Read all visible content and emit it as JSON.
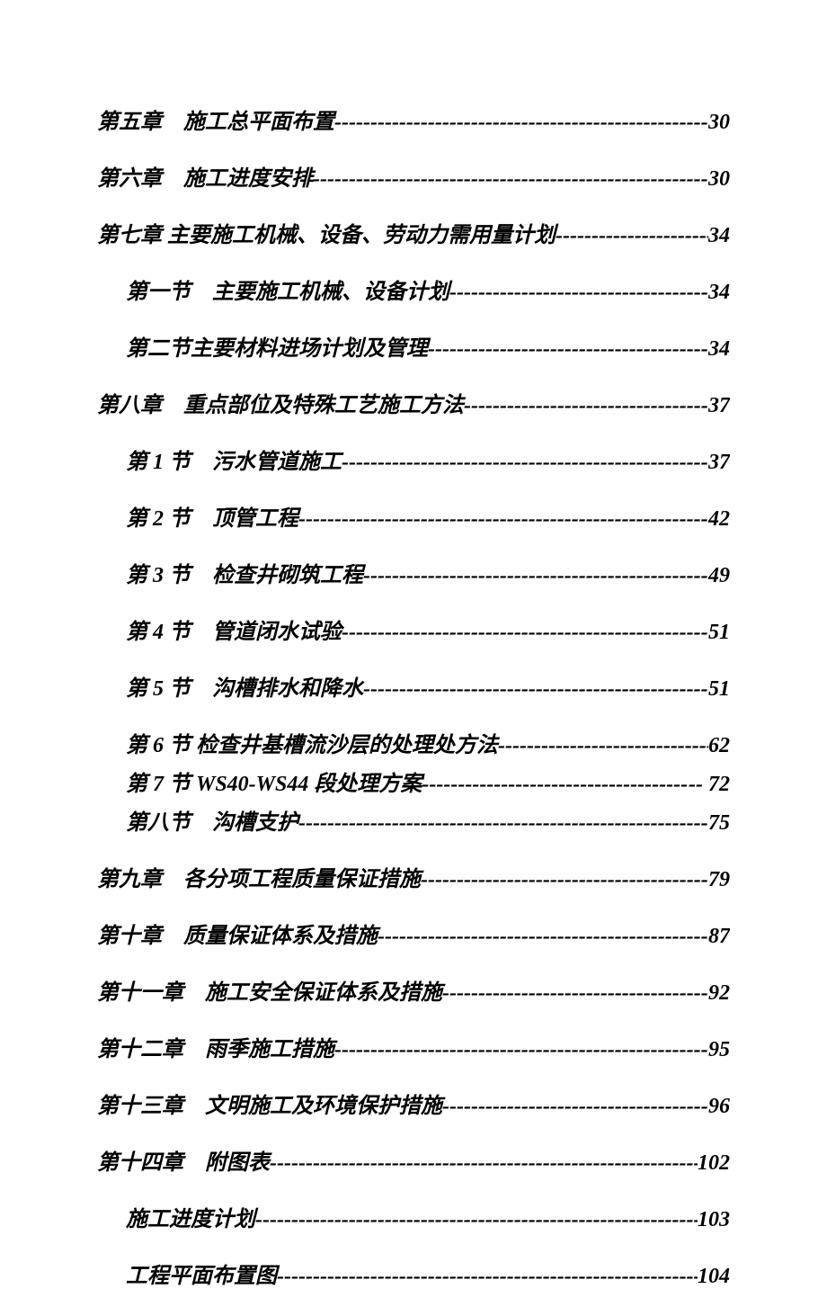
{
  "toc": {
    "font_family": "KaiTi",
    "font_style": "italic",
    "font_size_pt": 18,
    "text_color": "#000000",
    "background_color": "#ffffff",
    "leader_char": "-",
    "entries": [
      {
        "level": 0,
        "label": "第五章　施工总平面布置",
        "page": "30",
        "tight": false
      },
      {
        "level": 0,
        "label": "第六章　施工进度安排",
        "page": "30",
        "tight": false
      },
      {
        "level": 0,
        "label": "第七章 主要施工机械、设备、劳动力需用量计划",
        "page": "34",
        "tight": false
      },
      {
        "level": 1,
        "label": "第一节　主要施工机械、设备计划",
        "page": "34",
        "tight": false
      },
      {
        "level": 1,
        "label": "第二节主要材料进场计划及管理",
        "page": "34",
        "tight": false
      },
      {
        "level": 0,
        "label": "第八章　重点部位及特殊工艺施工方法",
        "page": "37",
        "tight": false
      },
      {
        "level": 1,
        "label": "第 1 节　污水管道施工",
        "page": "37",
        "tight": false
      },
      {
        "level": 1,
        "label": "第 2 节　顶管工程 ",
        "page": "42",
        "tight": false
      },
      {
        "level": 1,
        "label": "第 3 节　检查井砌筑工程",
        "page": "49",
        "tight": false
      },
      {
        "level": 1,
        "label": "第 4 节　管道闭水试验 ",
        "page": "51",
        "tight": false
      },
      {
        "level": 1,
        "label": "第 5 节　沟槽排水和降水 ",
        "page": "51",
        "tight": false
      },
      {
        "level": 1,
        "label": "第 6 节 检查井基槽流沙层的处理处方法 ",
        "page": "62",
        "tight": true
      },
      {
        "level": 1,
        "label": "第 7 节 WS40-WS44 段处理方案",
        "page": " -- 72",
        "tight": true
      },
      {
        "level": 1,
        "label": "第八节　沟槽支护",
        "page": "75",
        "tight": false
      },
      {
        "level": 0,
        "label": "第九章　各分项工程质量保证措施",
        "page": "79",
        "tight": false
      },
      {
        "level": 0,
        "label": "第十章　质量保证体系及措施",
        "page": "87",
        "tight": false
      },
      {
        "level": 0,
        "label": "第十一章　施工安全保证体系及措施",
        "page": "92",
        "tight": false
      },
      {
        "level": 0,
        "label": "第十二章　雨季施工措施",
        "page": "95",
        "tight": false
      },
      {
        "level": 0,
        "label": "第十三章　文明施工及环境保护措施",
        "page": "96",
        "tight": false
      },
      {
        "level": 0,
        "label": "第十四章　附图表",
        "page": "102",
        "tight": false
      },
      {
        "level": 1,
        "label": "施工进度计划",
        "page": "103",
        "tight": false
      },
      {
        "level": 1,
        "label": "工程平面布置图 ",
        "page": "104",
        "tight": false
      }
    ]
  }
}
